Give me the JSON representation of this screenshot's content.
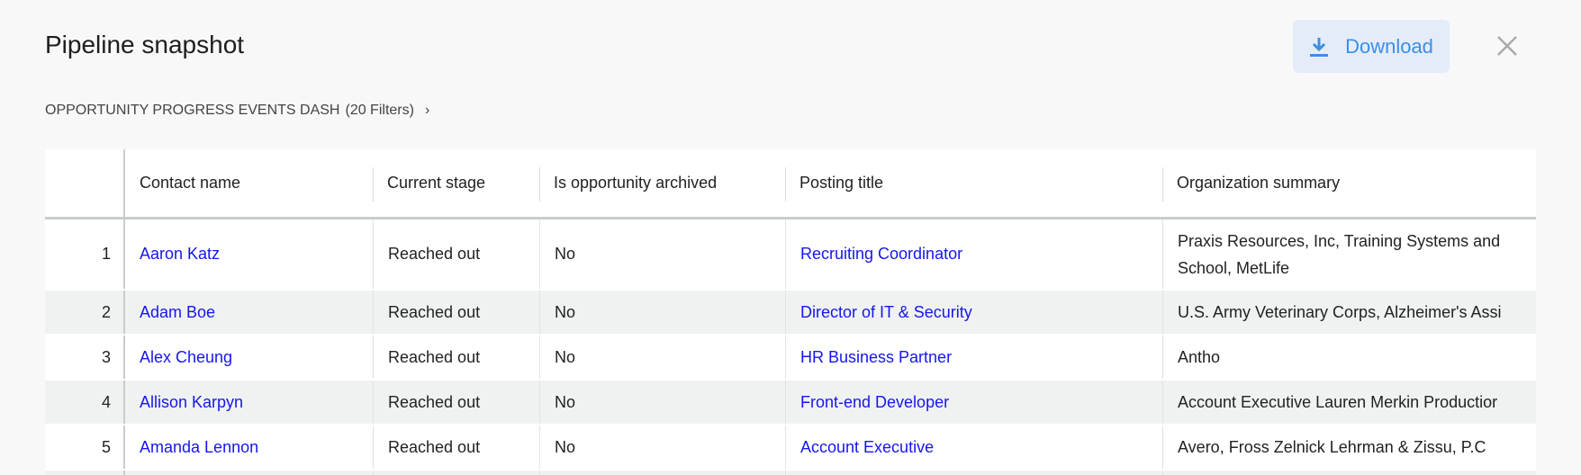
{
  "header": {
    "title": "Pipeline snapshot",
    "download_label": "Download"
  },
  "breadcrumb": {
    "dashboard": "OPPORTUNITY PROGRESS EVENTS DASH",
    "filters": "(20 Filters)"
  },
  "colors": {
    "link": "#1616ee",
    "download_bg": "#e3ecf8",
    "download_text": "#3d8ee8",
    "stripe": "#f0f2f2"
  },
  "table": {
    "columns": [
      "",
      "Contact name",
      "Current stage",
      "Is opportunity archived",
      "Posting title",
      "Organization summary"
    ],
    "rows": [
      {
        "index": "1",
        "contact": "Aaron Katz",
        "stage": "Reached out",
        "archived": "No",
        "posting": "Recruiting Coordinator",
        "org": "Praxis Resources, Inc, Training Systems and School, MetLife"
      },
      {
        "index": "2",
        "contact": "Adam Boe",
        "stage": "Reached out",
        "archived": "No",
        "posting": "Director of IT & Security",
        "org": "U.S. Army Veterinary Corps, Alzheimer's Assi"
      },
      {
        "index": "3",
        "contact": "Alex Cheung",
        "stage": "Reached out",
        "archived": "No",
        "posting": "HR Business Partner",
        "org": "Antho"
      },
      {
        "index": "4",
        "contact": "Allison Karpyn",
        "stage": "Reached out",
        "archived": "No",
        "posting": "Front-end Developer",
        "org": "Account Executive Lauren Merkin Productior"
      },
      {
        "index": "5",
        "contact": "Amanda Lennon",
        "stage": "Reached out",
        "archived": "No",
        "posting": "Account Executive",
        "org": "Avero, Fross Zelnick Lehrman & Zissu, P.C"
      }
    ]
  }
}
